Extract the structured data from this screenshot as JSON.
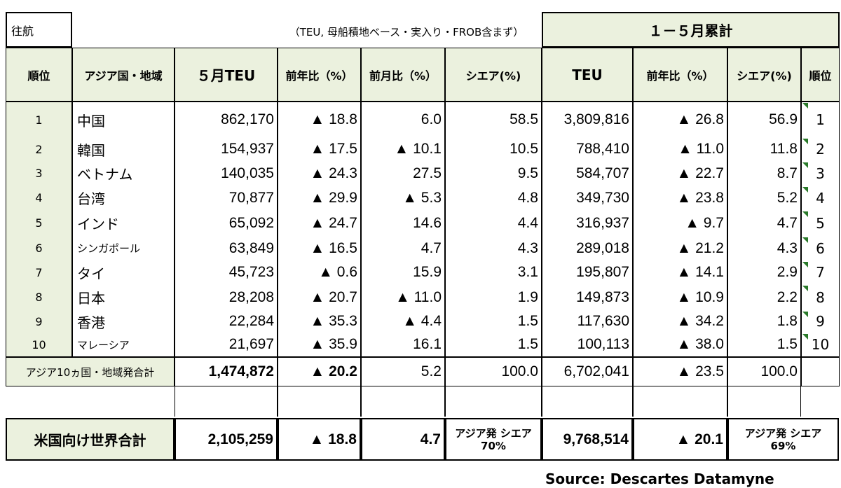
{
  "title_cell": "往航",
  "note": "（TEU, 母船積地ベース・実入り・FROB含まず）",
  "cumulative_title": "１－５月累計",
  "headers": {
    "rank": "順位",
    "region": "アジア国・地域",
    "may_teu": "５月TEU",
    "yoy": "前年比（%）",
    "mom": "前月比（%）",
    "share": "シエア(%)",
    "cum_teu": "TEU",
    "cum_yoy": "前年比（%）",
    "cum_share": "シエア(%)",
    "cum_rank": "順位"
  },
  "rows": [
    {
      "rank": "1",
      "name": "中国",
      "teu": "862,170",
      "yoy": "▲ 18.8",
      "mom": "6.0",
      "share": "58.5",
      "cum_teu": "3,809,816",
      "cum_yoy": "▲ 26.8",
      "cum_share": "56.9",
      "cum_rank": "1"
    },
    {
      "rank": "2",
      "name": "韓国",
      "teu": "154,937",
      "yoy": "▲ 17.5",
      "mom": "▲ 10.1",
      "share": "10.5",
      "cum_teu": "788,410",
      "cum_yoy": "▲ 11.0",
      "cum_share": "11.8",
      "cum_rank": "2"
    },
    {
      "rank": "3",
      "name": "ベトナム",
      "teu": "140,035",
      "yoy": "▲ 24.3",
      "mom": "27.5",
      "share": "9.5",
      "cum_teu": "584,707",
      "cum_yoy": "▲ 22.7",
      "cum_share": "8.7",
      "cum_rank": "3"
    },
    {
      "rank": "4",
      "name": "台湾",
      "teu": "70,877",
      "yoy": "▲ 29.9",
      "mom": "▲ 5.3",
      "share": "4.8",
      "cum_teu": "349,730",
      "cum_yoy": "▲ 23.8",
      "cum_share": "5.2",
      "cum_rank": "4"
    },
    {
      "rank": "5",
      "name": "インド",
      "teu": "65,092",
      "yoy": "▲ 24.7",
      "mom": "14.6",
      "share": "4.4",
      "cum_teu": "316,937",
      "cum_yoy": "▲ 9.7",
      "cum_share": "4.7",
      "cum_rank": "5"
    },
    {
      "rank": "6",
      "name": "シンガポール",
      "teu": "63,849",
      "yoy": "▲ 16.5",
      "mom": "4.7",
      "share": "4.3",
      "cum_teu": "289,018",
      "cum_yoy": "▲ 21.2",
      "cum_share": "4.3",
      "cum_rank": "6"
    },
    {
      "rank": "7",
      "name": "タイ",
      "teu": "45,723",
      "yoy": "▲ 0.6",
      "mom": "15.9",
      "share": "3.1",
      "cum_teu": "195,807",
      "cum_yoy": "▲ 14.1",
      "cum_share": "2.9",
      "cum_rank": "7"
    },
    {
      "rank": "8",
      "name": "日本",
      "teu": "28,208",
      "yoy": "▲ 20.7",
      "mom": "▲ 11.0",
      "share": "1.9",
      "cum_teu": "149,873",
      "cum_yoy": "▲ 10.9",
      "cum_share": "2.2",
      "cum_rank": "8"
    },
    {
      "rank": "9",
      "name": "香港",
      "teu": "22,284",
      "yoy": "▲ 35.3",
      "mom": "▲ 4.4",
      "share": "1.5",
      "cum_teu": "117,630",
      "cum_yoy": "▲ 34.2",
      "cum_share": "1.8",
      "cum_rank": "9"
    },
    {
      "rank": "10",
      "name": "マレーシア",
      "teu": "21,697",
      "yoy": "▲ 35.9",
      "mom": "16.1",
      "share": "1.5",
      "cum_teu": "100,113",
      "cum_yoy": "▲ 38.0",
      "cum_share": "1.5",
      "cum_rank": "10"
    }
  ],
  "asia_total": {
    "label": "アジア10ヵ国・地域発合計",
    "teu": "1,474,872",
    "yoy": "▲ 20.2",
    "mom": "5.2",
    "share": "100.0",
    "cum_teu": "6,702,041",
    "cum_yoy": "▲ 23.5",
    "cum_share": "100.0"
  },
  "world_total": {
    "label": "米国向け世界合計",
    "teu": "2,105,259",
    "yoy": "▲ 18.8",
    "mom": "4.7",
    "share_line1": "アジア発 シエア",
    "share_line2": "70%",
    "cum_teu": "9,768,514",
    "cum_yoy": "▲ 20.1",
    "cum_share_line1": "アジア発 シエア",
    "cum_share_line2": "69%"
  },
  "source": "Source: Descartes Datamyne",
  "colors": {
    "header_fill": "#ebf1de",
    "marker": "#2a7a2a"
  }
}
